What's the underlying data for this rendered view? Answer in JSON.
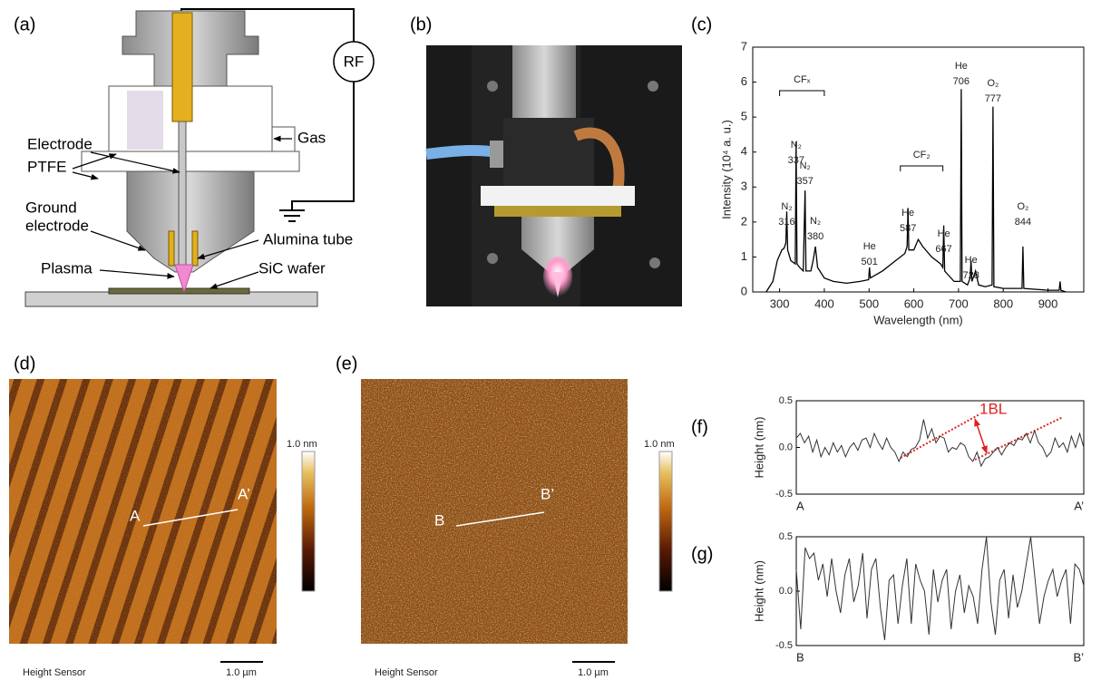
{
  "panel_labels": [
    "(a)",
    "(b)",
    "(c)",
    "(d)",
    "(e)",
    "(f)",
    "(g)"
  ],
  "diagram": {
    "rf": "RF",
    "electrode": "Electrode",
    "gas": "Gas",
    "ptfe": "PTFE",
    "ground_electrode": [
      "Ground",
      "electrode"
    ],
    "alumina_tube": "Alumina tube",
    "plasma": "Plasma",
    "sic_wafer": "SiC wafer"
  },
  "afm_images": [
    {
      "colorbar_label": "1.0 nm",
      "caption": "Height Sensor",
      "scale_bar": "1.0 µm",
      "line_start": "A",
      "line_end": "A’"
    },
    {
      "colorbar_label": "1.0 nm",
      "caption": "Height Sensor",
      "scale_bar": "1.0 µm",
      "line_start": "B",
      "line_end": "B’"
    }
  ],
  "chart_data": [
    {
      "type": "line",
      "x_label": "Wavelength (nm)",
      "y_label": "Intensity (10⁴ a. u.)",
      "color": "#000000",
      "x": [
        270,
        285,
        295,
        305,
        310,
        314,
        316,
        318,
        325,
        335,
        337,
        339,
        345,
        353,
        357,
        359,
        370,
        375,
        380,
        385,
        400,
        420,
        450,
        480,
        499,
        501,
        503,
        530,
        560,
        580,
        585,
        587,
        589,
        600,
        610,
        620,
        640,
        660,
        665,
        667,
        669,
        690,
        704,
        706,
        708,
        720,
        726,
        728,
        730,
        738,
        745,
        760,
        775,
        777,
        779,
        800,
        842,
        844,
        846,
        900,
        925,
        927,
        929,
        940
      ],
      "values": [
        0,
        0.3,
        0.9,
        1.2,
        1.25,
        1.4,
        2.3,
        1.2,
        0.9,
        0.8,
        4.3,
        0.8,
        0.7,
        0.6,
        2.9,
        0.6,
        0.6,
        0.9,
        1.3,
        0.7,
        0.4,
        0.3,
        0.25,
        0.3,
        0.35,
        0.7,
        0.4,
        0.6,
        0.9,
        1.1,
        1.3,
        2.4,
        1.2,
        1.2,
        1.5,
        1.3,
        1.0,
        0.8,
        0.7,
        1.9,
        0.6,
        0.3,
        0.3,
        5.8,
        0.3,
        0.2,
        0.4,
        0.9,
        0.3,
        0.6,
        0.2,
        0.15,
        0.2,
        5.3,
        0.15,
        0.1,
        0.1,
        1.3,
        0.1,
        0.05,
        0.05,
        0.3,
        0.05,
        0
      ],
      "xlim": [
        240,
        980
      ],
      "ylim": [
        0,
        7
      ],
      "xticks": [
        300,
        400,
        500,
        600,
        700,
        800,
        900
      ],
      "yticks": [
        0,
        1,
        2,
        3,
        4,
        5,
        6,
        7
      ],
      "annotations": [
        {
          "species": "N₂",
          "line": 316
        },
        {
          "species": "N₂",
          "line": 337
        },
        {
          "species": "N₂",
          "line": 357
        },
        {
          "species": "N₂",
          "line": 380
        },
        {
          "species": "He",
          "line": 501
        },
        {
          "species": "He",
          "line": 587
        },
        {
          "species": "He",
          "line": 667
        },
        {
          "species": "He",
          "line": 706
        },
        {
          "species": "O₂",
          "line": 777
        },
        {
          "species": "He",
          "line": 728
        },
        {
          "species": "O₂",
          "line": 844
        }
      ],
      "bands": [
        {
          "label": "CFₓ",
          "range": [
            300,
            400
          ]
        },
        {
          "label": "CF₂",
          "range": [
            570,
            665
          ]
        }
      ]
    },
    {
      "type": "line",
      "y_label": "Height (nm)",
      "color": "#333333",
      "annotation": "1BL",
      "x_labels": [
        "A",
        "A’"
      ],
      "ylim": [
        -0.5,
        0.5
      ],
      "yticks": [
        0.5,
        {
          "value": 0,
          "label": "0.0"
        },
        -0.5
      ],
      "values": [
        0.1,
        0.15,
        0.05,
        0.12,
        -0.05,
        0.08,
        -0.1,
        0.0,
        -0.08,
        0.05,
        -0.05,
        0.02,
        -0.1,
        0.0,
        0.05,
        -0.03,
        0.08,
        0.1,
        0.0,
        0.15,
        0.05,
        -0.02,
        0.1,
        0.0,
        -0.05,
        -0.15,
        -0.05,
        -0.1,
        -0.02,
        0.0,
        0.08,
        0.3,
        0.1,
        0.2,
        0.05,
        0.12,
        0.1,
        -0.05,
        0.0,
        -0.02,
        0.05,
        0.02,
        -0.1,
        -0.15,
        -0.05,
        -0.2,
        -0.12,
        -0.1,
        -0.05,
        0.0,
        -0.08,
        0.0,
        0.05,
        0.02,
        0.1,
        0.08,
        0.15,
        0.05,
        0.18,
        0.05,
        0.0,
        -0.1,
        -0.05,
        0.1,
        0.0,
        0.05,
        -0.05,
        0.12,
        0.0,
        0.15,
        0.0
      ]
    },
    {
      "type": "line",
      "y_label": "Height (nm)",
      "color": "#333333",
      "x_labels": [
        "B",
        "B’"
      ],
      "ylim": [
        -0.5,
        0.5
      ],
      "yticks": [
        0.5,
        {
          "value": 0,
          "label": "0.0"
        },
        -0.5
      ],
      "values": [
        0.2,
        -0.35,
        0.4,
        0.3,
        0.35,
        0.1,
        0.25,
        -0.05,
        0.3,
        0.0,
        -0.2,
        0.15,
        0.3,
        -0.1,
        0.05,
        0.35,
        -0.25,
        0.2,
        0.3,
        -0.15,
        -0.45,
        0.1,
        0.15,
        -0.3,
        0.05,
        0.3,
        -0.3,
        0.25,
        0.1,
        0.0,
        -0.4,
        0.2,
        -0.1,
        0.1,
        0.2,
        -0.35,
        0.0,
        0.15,
        -0.2,
        0.05,
        -0.05,
        -0.3,
        0.2,
        0.5,
        -0.1,
        -0.4,
        0.1,
        0.2,
        -0.25,
        0.15,
        -0.15,
        0.0,
        0.25,
        0.5,
        0.1,
        -0.3,
        -0.05,
        0.1,
        0.2,
        -0.05,
        0.1,
        0.2,
        -0.3,
        0.25,
        0.2,
        0.05
      ]
    }
  ]
}
